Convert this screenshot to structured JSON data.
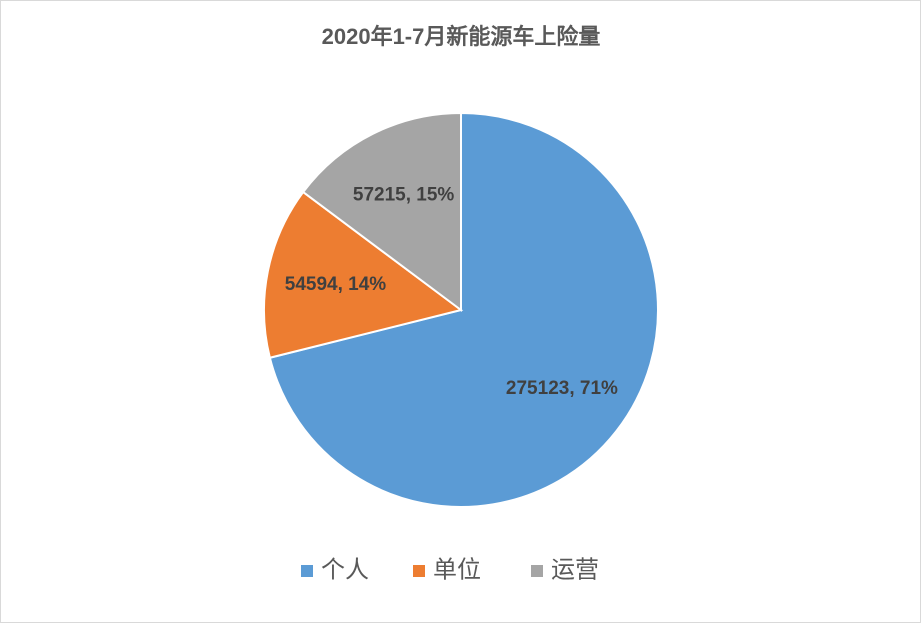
{
  "chart_data": {
    "type": "pie",
    "title": "2020年1-7月新能源车上险量",
    "categories": [
      "个人",
      "单位",
      "运营"
    ],
    "values": [
      275123,
      54594,
      57215
    ],
    "value_labels": [
      "275123, 71%",
      "54594, 14%",
      "57215, 15%"
    ],
    "colors": [
      "#5b9bd5",
      "#ed7d31",
      "#a5a5a5"
    ],
    "legend": "bottom"
  }
}
